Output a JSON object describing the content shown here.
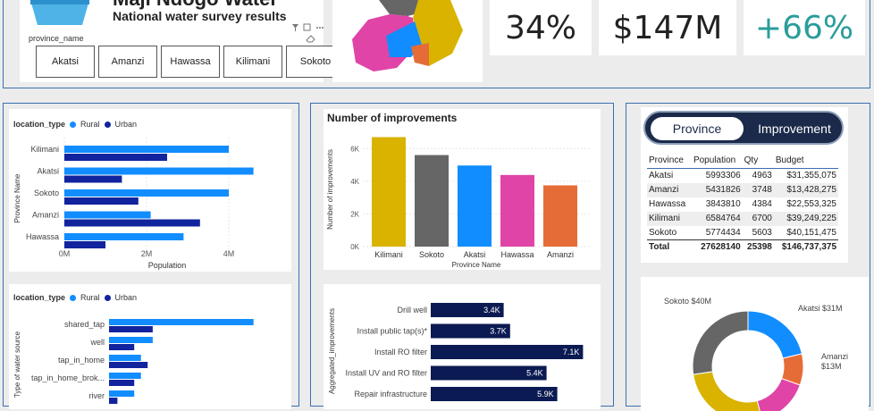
{
  "header": {
    "title": "Maji Ndogo Water",
    "subtitle": "National water survey results",
    "slicer_label": "province_name",
    "provinces": [
      "Akatsi",
      "Amanzi",
      "Hawassa",
      "Kilimani",
      "Sokoto"
    ]
  },
  "kpis": {
    "percent": "34%",
    "budget": "$147M",
    "change": "+66%"
  },
  "colors": {
    "rural": "#118dff",
    "urban": "#12239e",
    "navy": "#0b1a52",
    "kilimani": "#d9b300",
    "sokoto": "#666666",
    "akatsi": "#118dff",
    "hawassa": "#e044a7",
    "amanzi": "#e66c37",
    "teal": "#2a9d9a"
  },
  "province_chart": {
    "legend_title": "location_type",
    "legend_rural": "Rural",
    "legend_urban": "Urban",
    "ylabel": "Province Name",
    "xlabel": "Population",
    "ticks": [
      "0M",
      "2M",
      "4M"
    ],
    "chart_data": {
      "type": "bar",
      "orientation": "horizontal",
      "categories": [
        "Kilimani",
        "Akatsi",
        "Sokoto",
        "Amanzi",
        "Hawassa"
      ],
      "series": [
        {
          "name": "Rural",
          "values": [
            4.0,
            4.6,
            4.0,
            2.1,
            2.9
          ]
        },
        {
          "name": "Urban",
          "values": [
            2.5,
            1.4,
            1.8,
            3.3,
            1.0
          ]
        }
      ],
      "xlim": [
        0,
        5
      ]
    }
  },
  "source_chart": {
    "legend_title": "location_type",
    "legend_rural": "Rural",
    "legend_urban": "Urban",
    "ylabel": "Type of water source",
    "chart_data": {
      "type": "bar",
      "orientation": "horizontal",
      "categories": [
        "shared_tap",
        "well",
        "tap_in_home",
        "tap_in_home_brok...",
        "river"
      ],
      "series": [
        {
          "name": "Rural",
          "values": [
            8.6,
            2.6,
            1.9,
            1.9,
            1.5
          ]
        },
        {
          "name": "Urban",
          "values": [
            2.6,
            1.5,
            2.3,
            1.5,
            0.5
          ]
        }
      ],
      "xlim": [
        0,
        10
      ]
    }
  },
  "improvements_chart": {
    "title": "Number of improvements",
    "ylabel": "Number of improvements",
    "xlabel": "Province Name",
    "ticks": [
      "0K",
      "2K",
      "4K",
      "6K"
    ],
    "chart_data": {
      "type": "bar",
      "categories": [
        "Kilimani",
        "Sokoto",
        "Akatsi",
        "Hawassa",
        "Amanzi"
      ],
      "values": [
        6700,
        5603,
        4963,
        4384,
        3748
      ],
      "ylim": [
        0,
        7000
      ]
    }
  },
  "aggregated_chart": {
    "ylabel": "Aggregated_improvements",
    "chart_data": {
      "type": "bar",
      "orientation": "horizontal",
      "categories": [
        "Drill well",
        "Install public tap(s)*",
        "Install RO filter",
        "Install UV and RO filter",
        "Repair infrastructure"
      ],
      "values": [
        3.4,
        3.7,
        7.1,
        5.4,
        5.9
      ],
      "labels": [
        "3.4K",
        "3.7K",
        "7.1K",
        "5.4K",
        "5.9K"
      ],
      "xlim": [
        0,
        7.5
      ]
    }
  },
  "toggle": {
    "province": "Province",
    "improvement": "Improvement"
  },
  "table": {
    "columns": [
      "Province",
      "Population",
      "Qty",
      "Budget"
    ],
    "rows": [
      [
        "Akatsi",
        "5993306",
        "4963",
        "$31,355,075"
      ],
      [
        "Amanzi",
        "5431826",
        "3748",
        "$13,428,275"
      ],
      [
        "Hawassa",
        "3843810",
        "4384",
        "$22,553,325"
      ],
      [
        "Kilimani",
        "6584764",
        "6700",
        "$39,249,225"
      ],
      [
        "Sokoto",
        "5774434",
        "5603",
        "$40,151,475"
      ]
    ],
    "total": [
      "Total",
      "27628140",
      "25398",
      "$146,737,375"
    ]
  },
  "donut": {
    "label_sokoto": "Sokoto $40M",
    "label_akatsi": "Akatsi $31M",
    "label_amanzi": "Amanzi",
    "label_amanzi_value": "$13M",
    "chart_data": {
      "type": "pie",
      "categories": [
        "Akatsi",
        "Amanzi",
        "Hawassa",
        "Kilimani",
        "Sokoto"
      ],
      "values": [
        31355075,
        13428275,
        22553325,
        39249225,
        40151475
      ]
    }
  }
}
